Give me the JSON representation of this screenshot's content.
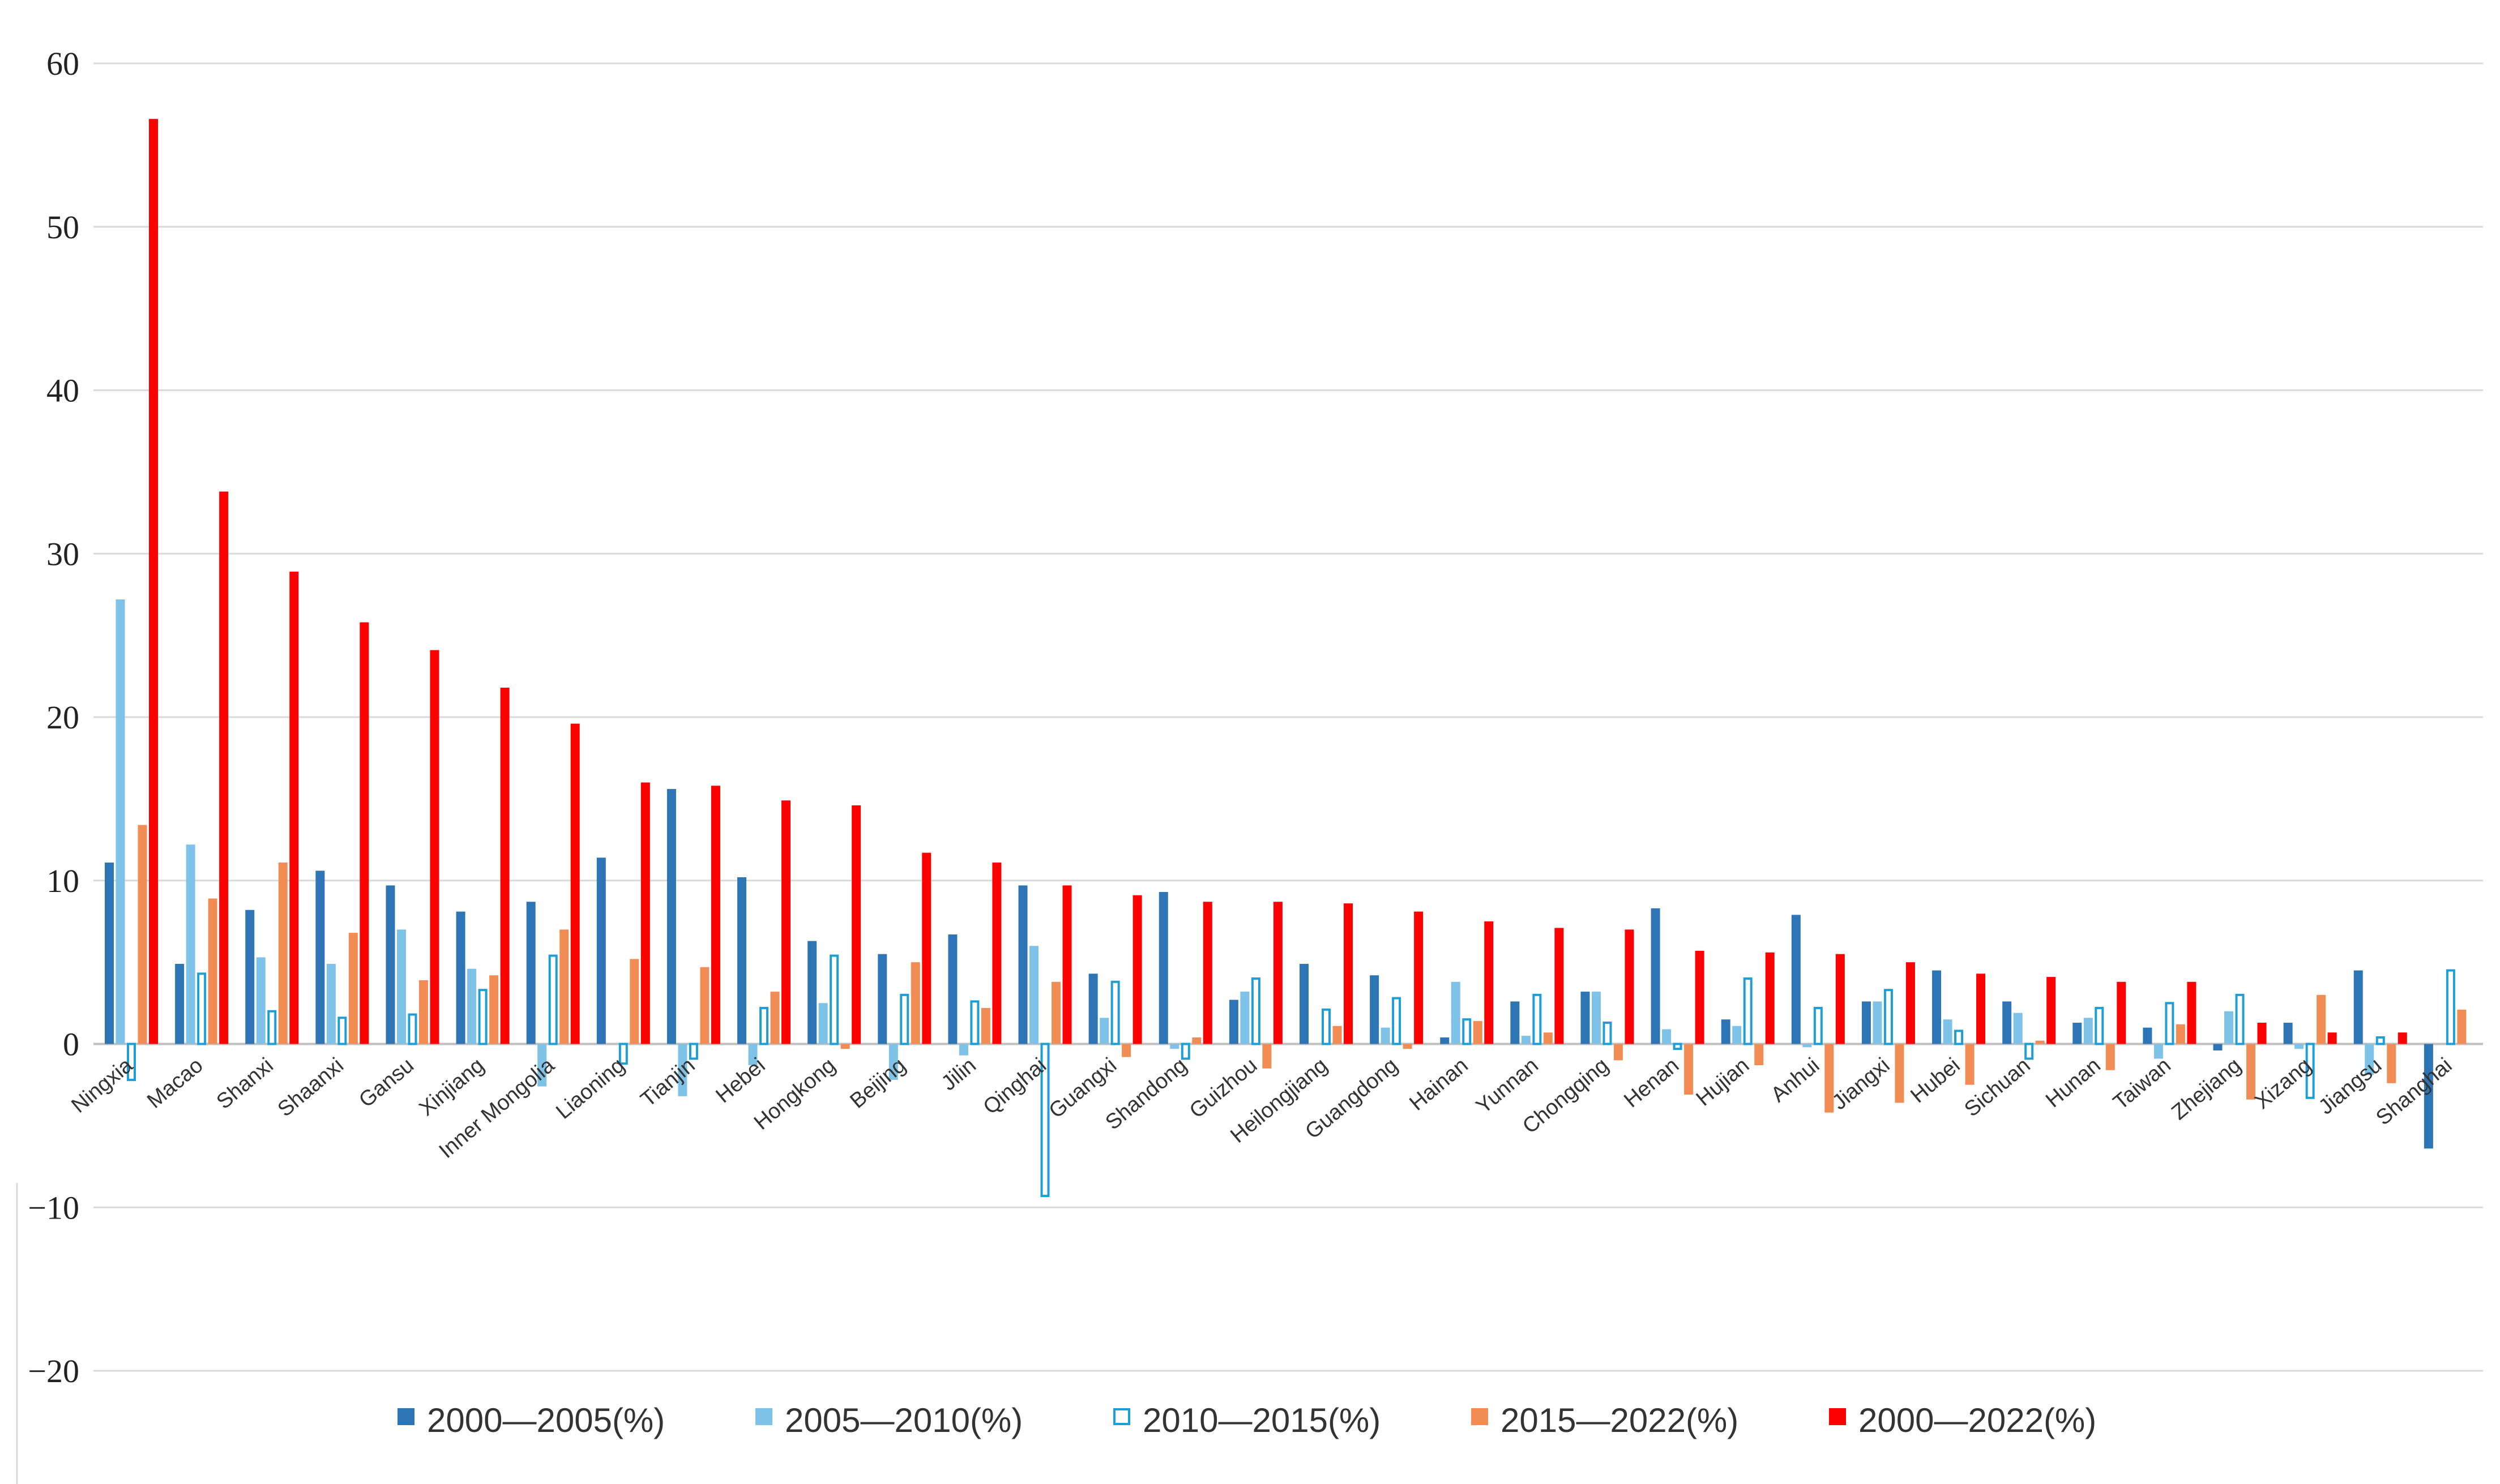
{
  "chart_data": {
    "type": "bar",
    "title": "",
    "xlabel": "",
    "ylabel": "",
    "ylim": [
      -20,
      60
    ],
    "yticks": [
      60,
      50,
      40,
      30,
      20,
      10,
      0,
      -10,
      -20
    ],
    "ytick_labels": [
      "60",
      "50",
      "40",
      "30",
      "20",
      "10",
      "0",
      "−10",
      "−20"
    ],
    "grid": true,
    "legend_position": "bottom",
    "categories": [
      "Ningxia",
      "Macao",
      "Shanxi",
      "Shaanxi",
      "Gansu",
      "Xinjiang",
      "Inner Mongolia",
      "Liaoning",
      "Tianjin",
      "Hebei",
      "Hongkong",
      "Beijing",
      "Jilin",
      "Qinghai",
      "Guangxi",
      "Shandong",
      "Guizhou",
      "Heilongjiang",
      "Guangdong",
      "Hainan",
      "Yunnan",
      "Chongqing",
      "Henan",
      "Hujian",
      "Anhui",
      "Jiangxi",
      "Hubei",
      "Sichuan",
      "Hunan",
      "Taiwan",
      "Zhejiang",
      "Xizang",
      "Jiangsu",
      "Shanghai"
    ],
    "series": [
      {
        "name": "2000—2005(%)",
        "color": "#2e75b6",
        "style": "solid",
        "values": [
          11.1,
          4.9,
          8.2,
          10.6,
          9.7,
          8.1,
          8.7,
          11.4,
          15.6,
          10.2,
          6.3,
          5.5,
          6.7,
          9.7,
          4.3,
          9.3,
          2.7,
          4.9,
          4.2,
          0.4,
          2.6,
          3.2,
          8.3,
          1.5,
          7.9,
          2.6,
          4.5,
          2.6,
          1.3,
          1.0,
          -0.4,
          1.3,
          4.5,
          -6.4
        ]
      },
      {
        "name": "2005—2010(%)",
        "color": "#7ec2e8",
        "style": "solid",
        "values": [
          27.2,
          12.2,
          5.3,
          4.9,
          7.0,
          4.6,
          -2.6,
          0.0,
          -3.2,
          -1.3,
          2.5,
          -2.2,
          -0.7,
          6.0,
          1.6,
          -0.3,
          3.2,
          0.0,
          1.0,
          3.8,
          0.5,
          3.2,
          0.9,
          1.1,
          -0.2,
          2.6,
          1.5,
          1.9,
          1.6,
          -0.9,
          2.0,
          -0.3,
          -1.9,
          0.0
        ]
      },
      {
        "name": "2010—2015(%)",
        "color": "#1f9ed6",
        "style": "outline",
        "values": [
          -2.2,
          4.3,
          2.0,
          1.6,
          1.8,
          3.3,
          5.4,
          -1.2,
          -0.9,
          2.2,
          5.4,
          3.0,
          2.6,
          -9.3,
          3.8,
          -0.9,
          4.0,
          2.1,
          2.8,
          1.5,
          3.0,
          1.3,
          -0.3,
          4.0,
          2.2,
          3.3,
          0.8,
          -0.9,
          2.2,
          2.5,
          3.0,
          -3.3,
          0.4,
          4.5
        ]
      },
      {
        "name": "2015—2022(%)",
        "color": "#f28c55",
        "style": "solid",
        "values": [
          13.4,
          8.9,
          11.1,
          6.8,
          3.9,
          4.2,
          7.0,
          5.2,
          4.7,
          3.2,
          -0.3,
          5.0,
          2.2,
          3.8,
          -0.8,
          0.4,
          -1.5,
          1.1,
          -0.3,
          1.4,
          0.7,
          -1.0,
          -3.1,
          -1.3,
          -4.2,
          -3.6,
          -2.5,
          0.2,
          -1.6,
          1.2,
          -3.4,
          3.0,
          -2.4,
          2.1
        ]
      },
      {
        "name": "2000—2022(%)",
        "color": "#ff0000",
        "style": "solid",
        "values": [
          56.6,
          33.8,
          28.9,
          25.8,
          24.1,
          21.8,
          19.6,
          16.0,
          15.8,
          14.9,
          14.6,
          11.7,
          11.1,
          9.7,
          9.1,
          8.7,
          8.7,
          8.6,
          8.1,
          7.5,
          7.1,
          7.0,
          5.7,
          5.6,
          5.5,
          5.0,
          4.3,
          4.1,
          3.8,
          3.8,
          1.3,
          0.7,
          0.7,
          0.0
        ]
      }
    ]
  }
}
